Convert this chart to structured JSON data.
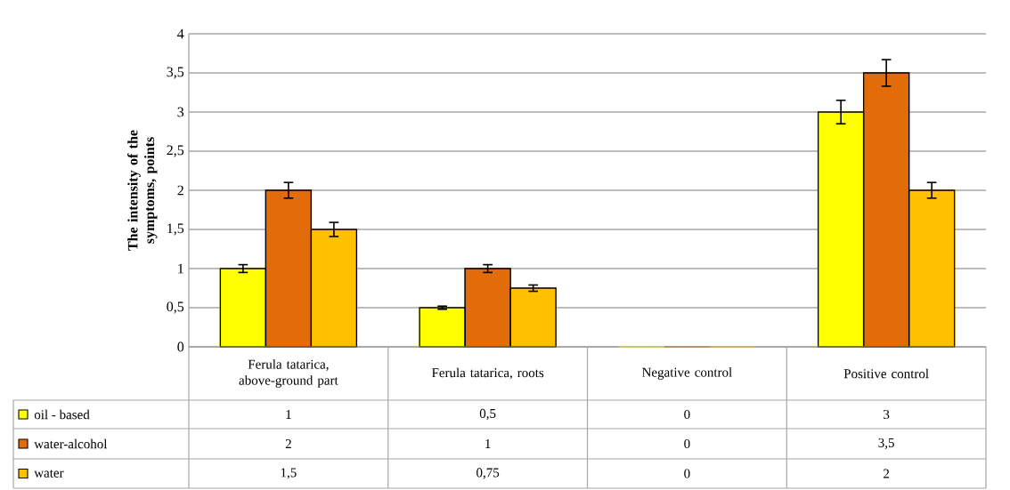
{
  "chart_data": {
    "type": "bar",
    "ylabel": "The intensity of the symptoms, points",
    "categories": [
      "Ferula tatarica, above-ground part",
      "Ferula tatarica, roots",
      "Negative control",
      "Positive control"
    ],
    "series": [
      {
        "name": "oil - based",
        "color": "#ffff00",
        "values": [
          1,
          0.5,
          0,
          3
        ],
        "errors": [
          0.05,
          0.02,
          null,
          0.15
        ],
        "value_labels": [
          "1",
          "0,5",
          "0",
          "3"
        ]
      },
      {
        "name": "water-alcohol",
        "color": "#e36c0a",
        "values": [
          2,
          1,
          0,
          3.5
        ],
        "errors": [
          0.1,
          0.05,
          null,
          0.17
        ],
        "value_labels": [
          "2",
          "1",
          "0",
          "3,5"
        ]
      },
      {
        "name": "water",
        "color": "#ffc000",
        "values": [
          1.5,
          0.75,
          0,
          2
        ],
        "errors": [
          0.09,
          0.04,
          null,
          0.1
        ],
        "value_labels": [
          "1,5",
          "0,75",
          "0",
          "2"
        ]
      }
    ],
    "ylim": [
      0,
      4
    ],
    "yticks": [
      0,
      {
        "value": 0.5,
        "label": "0,5"
      },
      1,
      {
        "value": 1.5,
        "label": "1,5"
      },
      2,
      {
        "value": 2.5,
        "label": "2,5"
      },
      3,
      {
        "value": 3.5,
        "label": "3,5"
      },
      4
    ],
    "grid": "y",
    "legend": "bottom"
  }
}
